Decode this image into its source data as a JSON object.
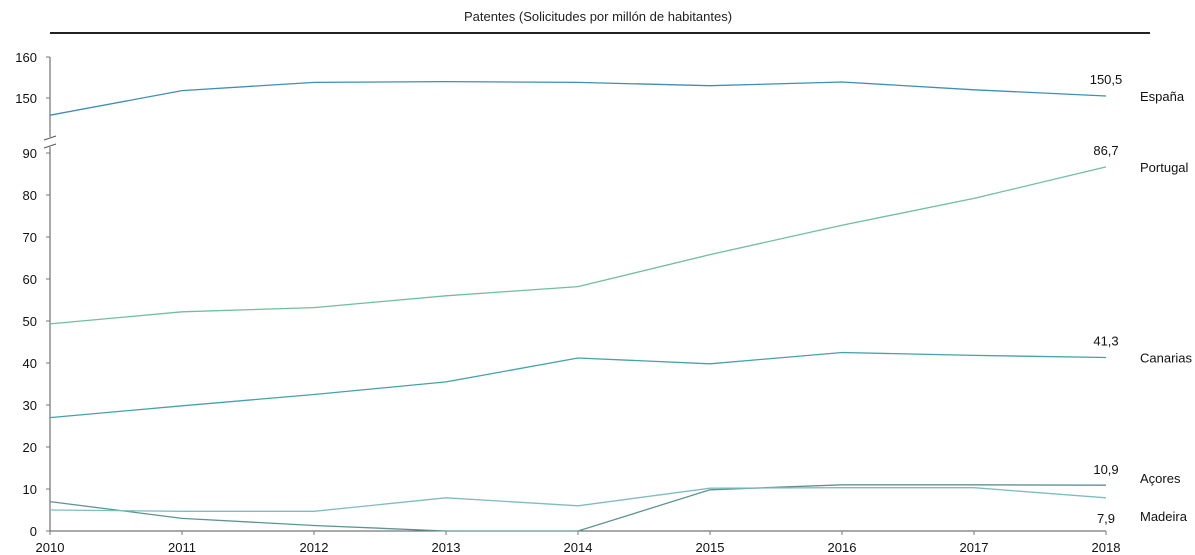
{
  "chart_data": {
    "type": "line",
    "title": "Patentes (Solicitudes por millón de habitantes)",
    "x": [
      "2010",
      "2011",
      "2012",
      "2013",
      "2014",
      "2015",
      "2016",
      "2017",
      "2018"
    ],
    "y_ticks_lower": [
      0,
      10,
      20,
      30,
      40,
      50,
      60,
      70,
      80,
      90
    ],
    "y_ticks_upper": [
      150,
      160
    ],
    "axis_break": true,
    "grid": false,
    "legend": "right, inline series labels",
    "series": [
      {
        "name": "España",
        "color": "#3f8fb3",
        "values": [
          145.8,
          151.8,
          153.8,
          154.0,
          153.8,
          153.0,
          153.9,
          152.0,
          150.5
        ],
        "end_label": "150,5"
      },
      {
        "name": "Portugal",
        "color": "#6fbf9e",
        "values": [
          49.3,
          52.2,
          53.2,
          56.0,
          58.2,
          65.8,
          72.8,
          79.2,
          86.7
        ],
        "end_label": "86,7"
      },
      {
        "name": "Canarias",
        "color": "#43a3aa",
        "values": [
          27.0,
          29.8,
          32.5,
          35.5,
          41.2,
          39.8,
          42.5,
          41.8,
          41.3
        ],
        "end_label": "41,3"
      },
      {
        "name": "Açores",
        "color": "#5e9490",
        "values": [
          7.0,
          3.0,
          1.3,
          0.0,
          0.0,
          9.8,
          11.0,
          11.0,
          10.9
        ],
        "end_label": "10,9"
      },
      {
        "name": "Madeira",
        "color": "#7fbcbf",
        "values": [
          5.0,
          4.7,
          4.7,
          7.9,
          6.0,
          10.2,
          10.3,
          10.3,
          7.9
        ],
        "end_label": "7,9"
      }
    ]
  }
}
